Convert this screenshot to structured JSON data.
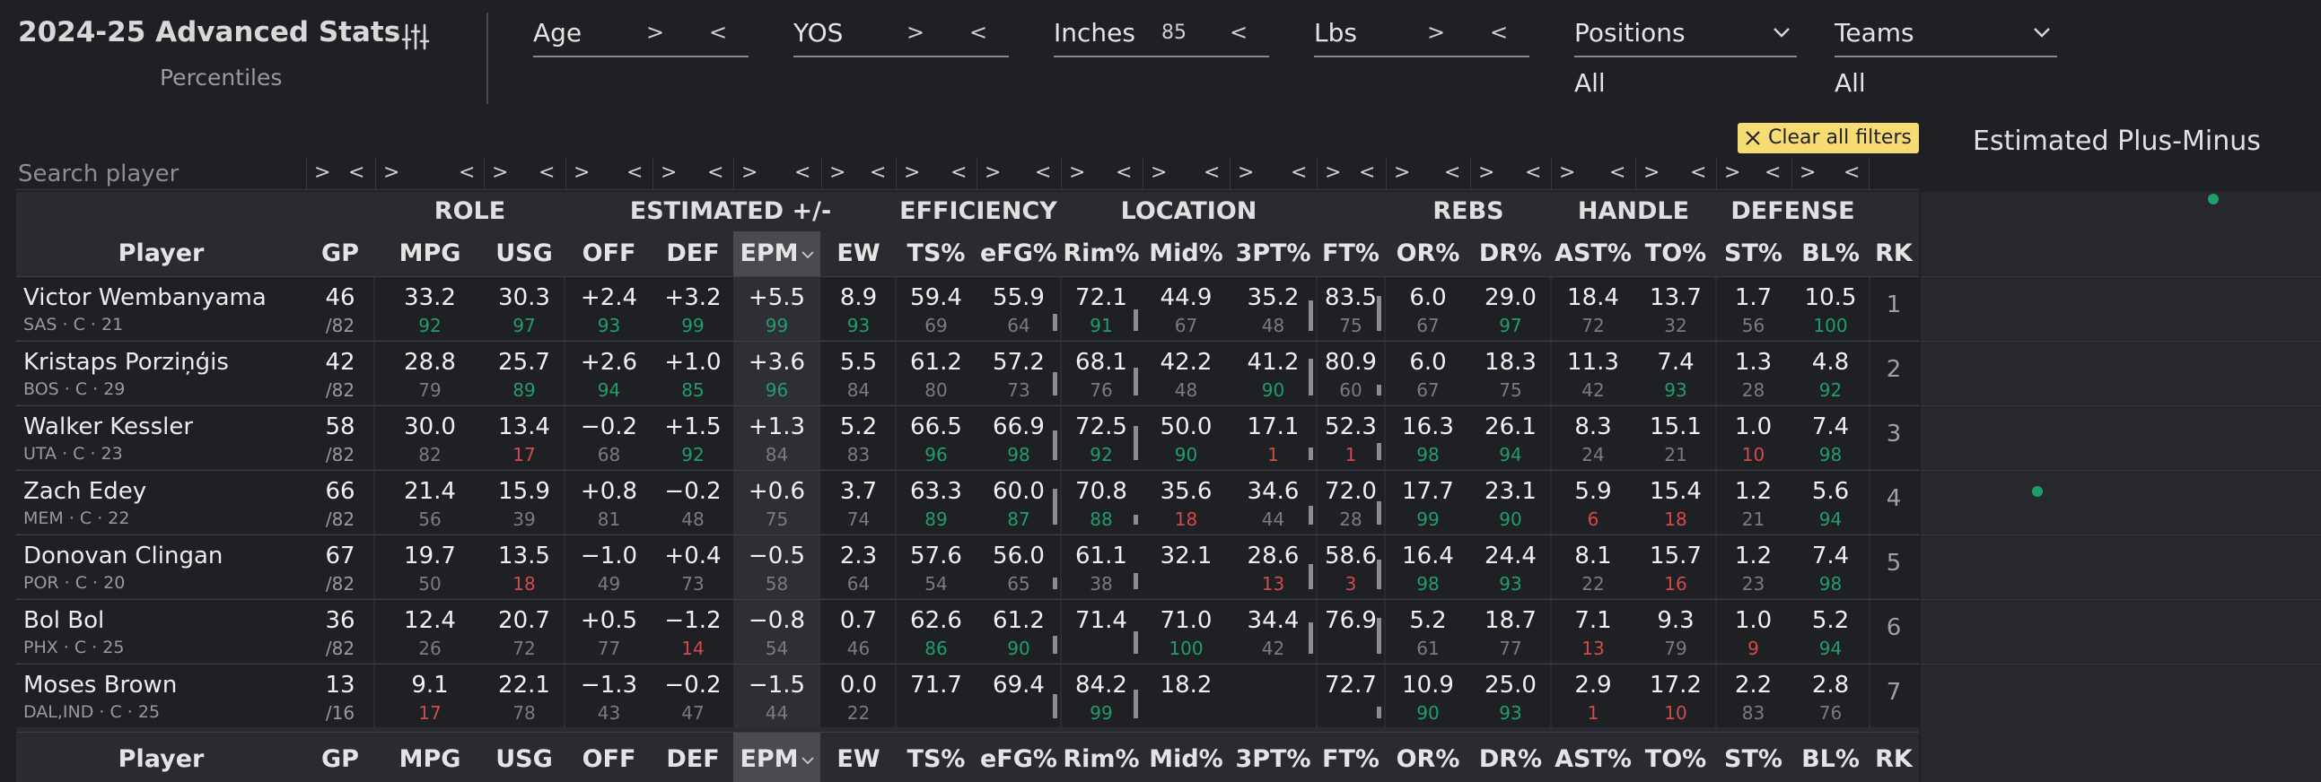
{
  "header": {
    "title": "2024-25 Advanced Stats",
    "subtitle": "Percentiles"
  },
  "filters": [
    {
      "label": "Age",
      "gt": ">",
      "lt": "<",
      "value": ""
    },
    {
      "label": "YOS",
      "gt": ">",
      "lt": "<",
      "value": ""
    },
    {
      "label": "Inches",
      "gt": "",
      "lt": "<",
      "value": "85"
    },
    {
      "label": "Lbs",
      "gt": ">",
      "lt": "<",
      "value": ""
    }
  ],
  "dropdowns": [
    {
      "label": "Positions",
      "selected": "All"
    },
    {
      "label": "Teams",
      "selected": "All"
    }
  ],
  "clear_filters": "Clear all filters",
  "search": {
    "placeholder": "Search player"
  },
  "filter_symbols": {
    "gt": ">",
    "lt": "<"
  },
  "sections": [
    "ROLE",
    "ESTIMATED +/-",
    "EFFICIENCY",
    "LOCATION",
    "REBS",
    "HANDLE",
    "DEFENSE"
  ],
  "columns": [
    "Player",
    "GP",
    "MPG",
    "USG",
    "OFF",
    "DEF",
    "EPM",
    "EW",
    "TS%",
    "eFG%",
    "Rim%",
    "Mid%",
    "3PT%",
    "FT%",
    "OR%",
    "DR%",
    "AST%",
    "TO%",
    "ST%",
    "BL%",
    "RK"
  ],
  "rows": [
    {
      "name": "Victor Wembanyama",
      "meta": "SAS · C · 21",
      "gp": "46",
      "gp_of": "/82",
      "stats": [
        [
          "33.2",
          "92"
        ],
        [
          "30.3",
          "97"
        ],
        [
          "+2.4",
          "93"
        ],
        [
          "+3.2",
          "99"
        ],
        [
          "+5.5",
          "99"
        ],
        [
          "8.9",
          "93"
        ],
        [
          "59.4",
          "69"
        ],
        [
          "55.9",
          "64"
        ],
        [
          "72.1",
          "91"
        ],
        [
          "44.9",
          "67"
        ],
        [
          "35.2",
          "48"
        ],
        [
          "83.5",
          "75"
        ],
        [
          "6.0",
          "67"
        ],
        [
          "29.0",
          "97"
        ],
        [
          "18.4",
          "72"
        ],
        [
          "13.7",
          "32"
        ],
        [
          "1.7",
          "56"
        ],
        [
          "10.5",
          "100"
        ]
      ],
      "rk": "1"
    },
    {
      "name": "Kristaps Porziņģis",
      "meta": "BOS · C · 29",
      "gp": "42",
      "gp_of": "/82",
      "stats": [
        [
          "28.8",
          "79"
        ],
        [
          "25.7",
          "89"
        ],
        [
          "+2.6",
          "94"
        ],
        [
          "+1.0",
          "85"
        ],
        [
          "+3.6",
          "96"
        ],
        [
          "5.5",
          "84"
        ],
        [
          "61.2",
          "80"
        ],
        [
          "57.2",
          "73"
        ],
        [
          "68.1",
          "76"
        ],
        [
          "42.2",
          "48"
        ],
        [
          "41.2",
          "90"
        ],
        [
          "80.9",
          "60"
        ],
        [
          "6.0",
          "67"
        ],
        [
          "18.3",
          "75"
        ],
        [
          "11.3",
          "42"
        ],
        [
          "7.4",
          "93"
        ],
        [
          "1.3",
          "28"
        ],
        [
          "4.8",
          "92"
        ]
      ],
      "rk": "2"
    },
    {
      "name": "Walker Kessler",
      "meta": "UTA · C · 23",
      "gp": "58",
      "gp_of": "/82",
      "stats": [
        [
          "30.0",
          "82"
        ],
        [
          "13.4",
          "17"
        ],
        [
          "−0.2",
          "68"
        ],
        [
          "+1.5",
          "92"
        ],
        [
          "+1.3",
          "84"
        ],
        [
          "5.2",
          "83"
        ],
        [
          "66.5",
          "96"
        ],
        [
          "66.9",
          "98"
        ],
        [
          "72.5",
          "92"
        ],
        [
          "50.0",
          "90"
        ],
        [
          "17.1",
          "1"
        ],
        [
          "52.3",
          "1"
        ],
        [
          "16.3",
          "98"
        ],
        [
          "26.1",
          "94"
        ],
        [
          "8.3",
          "24"
        ],
        [
          "15.1",
          "21"
        ],
        [
          "1.0",
          "10"
        ],
        [
          "7.4",
          "98"
        ]
      ],
      "rk": "3"
    },
    {
      "name": "Zach Edey",
      "meta": "MEM · C · 22",
      "gp": "66",
      "gp_of": "/82",
      "stats": [
        [
          "21.4",
          "56"
        ],
        [
          "15.9",
          "39"
        ],
        [
          "+0.8",
          "81"
        ],
        [
          "−0.2",
          "48"
        ],
        [
          "+0.6",
          "75"
        ],
        [
          "3.7",
          "74"
        ],
        [
          "63.3",
          "89"
        ],
        [
          "60.0",
          "87"
        ],
        [
          "70.8",
          "88"
        ],
        [
          "35.6",
          "18"
        ],
        [
          "34.6",
          "44"
        ],
        [
          "72.0",
          "28"
        ],
        [
          "17.7",
          "99"
        ],
        [
          "23.1",
          "90"
        ],
        [
          "5.9",
          "6"
        ],
        [
          "15.4",
          "18"
        ],
        [
          "1.2",
          "21"
        ],
        [
          "5.6",
          "94"
        ]
      ],
      "rk": "4"
    },
    {
      "name": "Donovan Clingan",
      "meta": "POR · C · 20",
      "gp": "67",
      "gp_of": "/82",
      "stats": [
        [
          "19.7",
          "50"
        ],
        [
          "13.5",
          "18"
        ],
        [
          "−1.0",
          "49"
        ],
        [
          "+0.4",
          "73"
        ],
        [
          "−0.5",
          "58"
        ],
        [
          "2.3",
          "64"
        ],
        [
          "57.6",
          "54"
        ],
        [
          "56.0",
          "65"
        ],
        [
          "61.1",
          "38"
        ],
        [
          "32.1",
          ""
        ],
        [
          "28.6",
          "13"
        ],
        [
          "58.6",
          "3"
        ],
        [
          "16.4",
          "98"
        ],
        [
          "24.4",
          "93"
        ],
        [
          "8.1",
          "22"
        ],
        [
          "15.7",
          "16"
        ],
        [
          "1.2",
          "23"
        ],
        [
          "7.4",
          "98"
        ]
      ],
      "rk": "5"
    },
    {
      "name": "Bol Bol",
      "meta": "PHX · C · 25",
      "gp": "36",
      "gp_of": "/82",
      "stats": [
        [
          "12.4",
          "26"
        ],
        [
          "20.7",
          "72"
        ],
        [
          "+0.5",
          "77"
        ],
        [
          "−1.2",
          "14"
        ],
        [
          "−0.8",
          "54"
        ],
        [
          "0.7",
          "46"
        ],
        [
          "62.6",
          "86"
        ],
        [
          "61.2",
          "90"
        ],
        [
          "71.4",
          ""
        ],
        [
          "71.0",
          "100"
        ],
        [
          "34.4",
          "42"
        ],
        [
          "76.9",
          ""
        ],
        [
          "5.2",
          "61"
        ],
        [
          "18.7",
          "77"
        ],
        [
          "7.1",
          "13"
        ],
        [
          "9.3",
          "79"
        ],
        [
          "1.0",
          "9"
        ],
        [
          "5.2",
          "94"
        ]
      ],
      "rk": "6"
    },
    {
      "name": "Moses Brown",
      "meta": "DAL,IND · C · 25",
      "gp": "13",
      "gp_of": "/16",
      "stats": [
        [
          "9.1",
          "17"
        ],
        [
          "22.1",
          "78"
        ],
        [
          "−1.3",
          "43"
        ],
        [
          "−0.2",
          "47"
        ],
        [
          "−1.5",
          "44"
        ],
        [
          "0.0",
          "22"
        ],
        [
          "71.7",
          ""
        ],
        [
          "69.4",
          ""
        ],
        [
          "84.2",
          "99"
        ],
        [
          "18.2",
          ""
        ],
        [
          "",
          ""
        ],
        [
          "72.7",
          ""
        ],
        [
          "10.9",
          "90"
        ],
        [
          "25.0",
          "93"
        ],
        [
          "2.9",
          "1"
        ],
        [
          "17.2",
          "10"
        ],
        [
          "2.2",
          "83"
        ],
        [
          "2.8",
          "76"
        ]
      ],
      "rk": "7"
    }
  ],
  "plot": {
    "title": "Estimated Plus-Minus",
    "points": [
      5.5,
      0.6
    ]
  },
  "colors": {
    "background": "#1f2024",
    "table_bg": "#2a2b30",
    "high_pct": "#1f9e6a",
    "low_pct": "#d24a4a",
    "mid_pct": "#7b7b7b",
    "clear_btn": "#f6dc72"
  }
}
